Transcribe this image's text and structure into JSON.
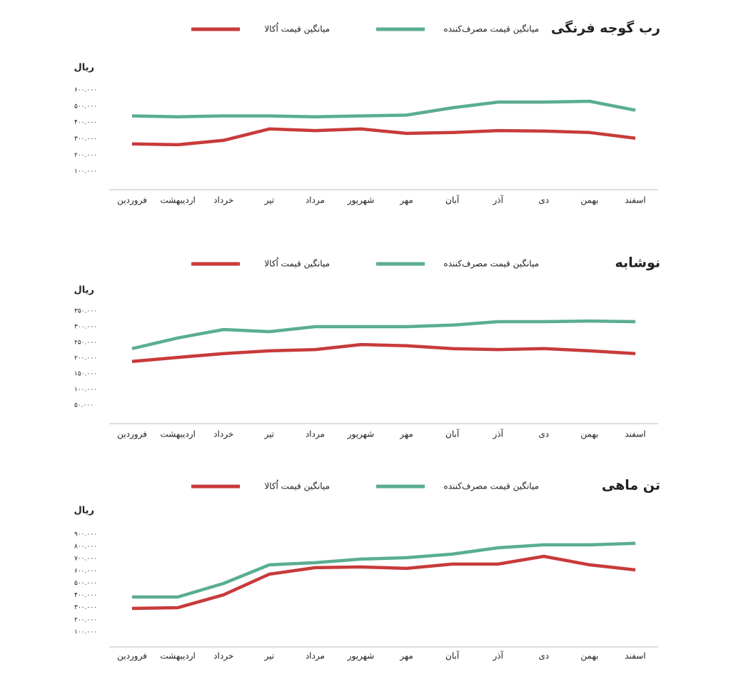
{
  "chart_data": [
    {
      "type": "line",
      "title": "رب گوجه فرنگی",
      "y_label": "ریال",
      "categories": [
        "فروردین",
        "اردیبهشت",
        "خرداد",
        "تیر",
        "مرداد",
        "شهریور",
        "مهر",
        "آبان",
        "آذر",
        "دی",
        "بهمن",
        "اسفند"
      ],
      "series": [
        {
          "name": "میانگین قیمت مصرف‌کننده",
          "color": "#5aae8f",
          "values": [
            440000,
            435000,
            440000,
            440000,
            435000,
            440000,
            445000,
            490000,
            525000,
            525000,
            530000,
            475000
          ]
        },
        {
          "name": "میانگین قیمت اُکالا",
          "color": "#c83a3a",
          "values": [
            268000,
            263000,
            290000,
            360000,
            350000,
            360000,
            333000,
            338000,
            350000,
            347000,
            338000,
            303000
          ]
        }
      ],
      "ylim": [
        0,
        600000
      ],
      "yticks": [
        {
          "value": 100000,
          "label": "۱۰۰.۰۰۰"
        },
        {
          "value": 200000,
          "label": "۲۰۰.۰۰۰"
        },
        {
          "value": 300000,
          "label": "۳۰۰.۰۰۰"
        },
        {
          "value": 400000,
          "label": "۴۰۰.۰۰۰"
        },
        {
          "value": 500000,
          "label": "۵۰۰.۰۰۰"
        },
        {
          "value": 600000,
          "label": "۶۰۰.۰۰۰"
        }
      ],
      "grid": false
    },
    {
      "type": "line",
      "title": "نوشابه",
      "y_label": "ریال",
      "categories": [
        "فروردین",
        "اردیبهشت",
        "خرداد",
        "تیر",
        "مرداد",
        "شهریور",
        "مهر",
        "آبان",
        "آذر",
        "دی",
        "بهمن",
        "اسفند"
      ],
      "series": [
        {
          "name": "میانگین قیمت مصرف‌کننده",
          "color": "#5aae8f",
          "values": [
            230000,
            264000,
            291000,
            284000,
            300000,
            300000,
            300000,
            305000,
            316000,
            316000,
            318000,
            316000
          ]
        },
        {
          "name": "میانگین قیمت اُکالا",
          "color": "#c83a3a",
          "values": [
            189000,
            202000,
            214000,
            223000,
            227000,
            243000,
            239000,
            230000,
            227000,
            230000,
            223000,
            214000
          ]
        }
      ],
      "ylim": [
        0,
        350000
      ],
      "yticks": [
        {
          "value": 50000,
          "label": "۵۰.۰۰۰"
        },
        {
          "value": 100000,
          "label": "۱۰۰.۰۰۰"
        },
        {
          "value": 150000,
          "label": "۱۵۰.۰۰۰"
        },
        {
          "value": 200000,
          "label": "۲۰۰.۰۰۰"
        },
        {
          "value": 250000,
          "label": "۲۵۰.۰۰۰"
        },
        {
          "value": 300000,
          "label": "۳۰۰.۰۰۰"
        },
        {
          "value": 350000,
          "label": "۳۵۰.۰۰۰"
        }
      ],
      "grid": false
    },
    {
      "type": "line",
      "title": "تن ماهی",
      "y_label": "ریال",
      "categories": [
        "فروردین",
        "اردیبهشت",
        "خرداد",
        "تیر",
        "مرداد",
        "شهریور",
        "مهر",
        "آبان",
        "آذر",
        "دی",
        "بهمن",
        "اسفند"
      ],
      "series": [
        {
          "name": "میانگین قیمت مصرف‌کننده",
          "color": "#5aae8f",
          "values": [
            386000,
            386000,
            497000,
            649000,
            667000,
            696000,
            708000,
            737000,
            789000,
            813000,
            813000,
            825000
          ]
        },
        {
          "name": "میانگین قیمت اُکالا",
          "color": "#c83a3a",
          "values": [
            292000,
            298000,
            404000,
            573000,
            626000,
            632000,
            620000,
            655000,
            655000,
            719000,
            649000,
            608000
          ]
        }
      ],
      "ylim": [
        0,
        900000
      ],
      "yticks": [
        {
          "value": 100000,
          "label": "۱۰۰.۰۰۰"
        },
        {
          "value": 200000,
          "label": "۲۰۰.۰۰۰"
        },
        {
          "value": 300000,
          "label": "۳۰۰.۰۰۰"
        },
        {
          "value": 400000,
          "label": "۴۰۰.۰۰۰"
        },
        {
          "value": 500000,
          "label": "۵۰۰.۰۰۰"
        },
        {
          "value": 600000,
          "label": "۶۰۰.۰۰۰"
        },
        {
          "value": 700000,
          "label": "۷۰۰.۰۰۰"
        },
        {
          "value": 800000,
          "label": "۸۰۰.۰۰۰"
        },
        {
          "value": 900000,
          "label": "۹۰۰.۰۰۰"
        }
      ],
      "grid": false
    }
  ]
}
